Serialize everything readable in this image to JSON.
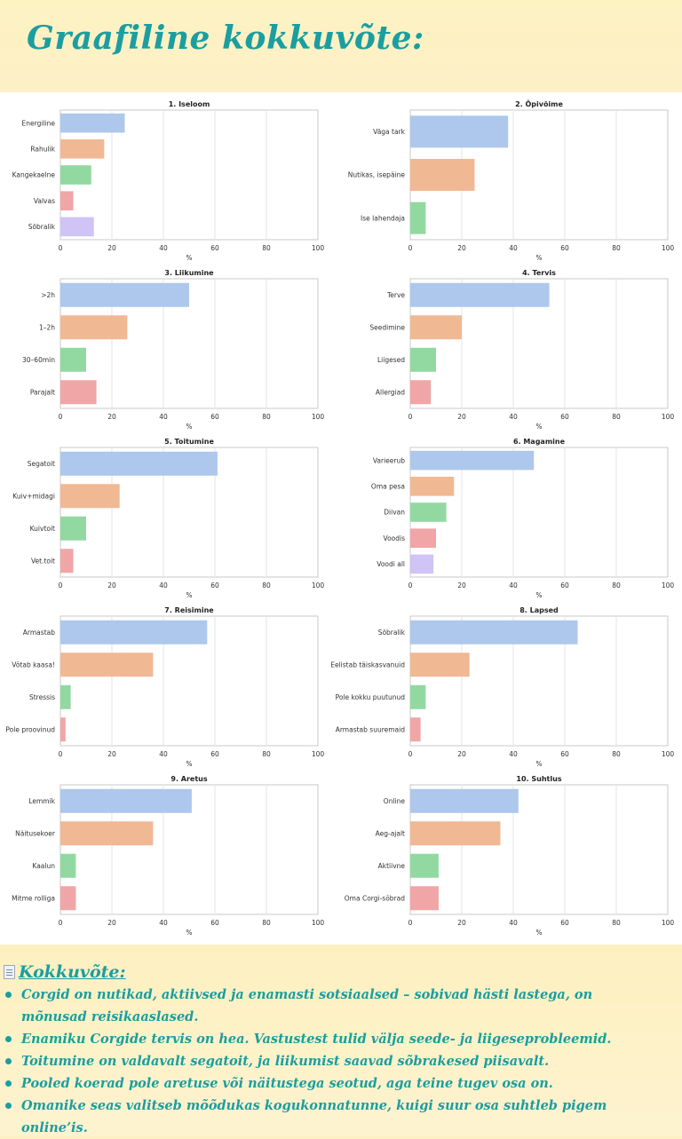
{
  "header": {
    "title": "Graafiline kokkuvõte:"
  },
  "chart_data": [
    {
      "type": "bar",
      "orientation": "horizontal",
      "title": "1. Iseloom",
      "xlabel": "%",
      "xlim": [
        0,
        100
      ],
      "xticks": [
        "0",
        "20",
        "40",
        "60",
        "80",
        "100"
      ],
      "grid": "vertical",
      "categories": [
        "Energiline",
        "Rahulik",
        "Kangekaelne",
        "Valvas",
        "Sõbralik"
      ],
      "values": [
        25,
        17,
        12,
        5,
        13
      ]
    },
    {
      "type": "bar",
      "orientation": "horizontal",
      "title": "2. Õpivõime",
      "xlabel": "%",
      "xlim": [
        0,
        100
      ],
      "xticks": [
        "0",
        "20",
        "40",
        "60",
        "80",
        "100"
      ],
      "grid": "vertical",
      "categories": [
        "Väga tark",
        "Nutikas, isepäine",
        "Ise lahendaja"
      ],
      "values": [
        38,
        25,
        6
      ]
    },
    {
      "type": "bar",
      "orientation": "horizontal",
      "title": "3. Liikumine",
      "xlabel": "%",
      "xlim": [
        0,
        100
      ],
      "xticks": [
        "0",
        "20",
        "40",
        "60",
        "80",
        "100"
      ],
      "grid": "vertical",
      "categories": [
        ">2h",
        "1–2h",
        "30–60min",
        "Parajalt"
      ],
      "values": [
        50,
        26,
        10,
        14
      ]
    },
    {
      "type": "bar",
      "orientation": "horizontal",
      "title": "4. Tervis",
      "xlabel": "%",
      "xlim": [
        0,
        100
      ],
      "xticks": [
        "0",
        "20",
        "40",
        "60",
        "80",
        "100"
      ],
      "grid": "vertical",
      "categories": [
        "Terve",
        "Seedimine",
        "Liigesed",
        "Allergiad"
      ],
      "values": [
        54,
        20,
        10,
        8
      ]
    },
    {
      "type": "bar",
      "orientation": "horizontal",
      "title": "5. Toitumine",
      "xlabel": "%",
      "xlim": [
        0,
        100
      ],
      "xticks": [
        "0",
        "20",
        "40",
        "60",
        "80",
        "100"
      ],
      "grid": "vertical",
      "categories": [
        "Segatoit",
        "Kuiv+midagi",
        "Kuivtoit",
        "Vet.toit"
      ],
      "values": [
        61,
        23,
        10,
        5
      ]
    },
    {
      "type": "bar",
      "orientation": "horizontal",
      "title": "6. Magamine",
      "xlabel": "%",
      "xlim": [
        0,
        100
      ],
      "xticks": [
        "0",
        "20",
        "40",
        "60",
        "80",
        "100"
      ],
      "grid": "vertical",
      "categories": [
        "Varieerub",
        "Oma pesa",
        "Diivan",
        "Voodis",
        "Voodi all"
      ],
      "values": [
        48,
        17,
        14,
        10,
        9
      ]
    },
    {
      "type": "bar",
      "orientation": "horizontal",
      "title": "7. Reisimine",
      "xlabel": "%",
      "xlim": [
        0,
        100
      ],
      "xticks": [
        "0",
        "20",
        "40",
        "60",
        "80",
        "100"
      ],
      "grid": "vertical",
      "categories": [
        "Armastab",
        "Võtab kaasa!",
        "Stressis",
        "Pole proovinud"
      ],
      "values": [
        57,
        36,
        4,
        2
      ]
    },
    {
      "type": "bar",
      "orientation": "horizontal",
      "title": "8. Lapsed",
      "xlabel": "%",
      "xlim": [
        0,
        100
      ],
      "xticks": [
        "0",
        "20",
        "40",
        "60",
        "80",
        "100"
      ],
      "grid": "vertical",
      "categories": [
        "Sõbralik",
        "Eelistab täiskasvanuid",
        "Pole kokku puutunud",
        "Armastab suuremaid"
      ],
      "values": [
        65,
        23,
        6,
        4
      ]
    },
    {
      "type": "bar",
      "orientation": "horizontal",
      "title": "9. Aretus",
      "xlabel": "%",
      "xlim": [
        0,
        100
      ],
      "xticks": [
        "0",
        "20",
        "40",
        "60",
        "80",
        "100"
      ],
      "grid": "vertical",
      "categories": [
        "Lemmik",
        "Näitusekoer",
        "Kaalun",
        "Mitme rolliga"
      ],
      "values": [
        51,
        36,
        6,
        6
      ]
    },
    {
      "type": "bar",
      "orientation": "horizontal",
      "title": "10. Suhtlus",
      "xlabel": "%",
      "xlim": [
        0,
        100
      ],
      "xticks": [
        "0",
        "20",
        "40",
        "60",
        "80",
        "100"
      ],
      "grid": "vertical",
      "categories": [
        "Online",
        "Aeg-ajalt",
        "Aktiivne",
        "Oma Corgi-sõbrad"
      ],
      "values": [
        42,
        35,
        11,
        11
      ]
    }
  ],
  "colors": {
    "bars": [
      "#aec7ec",
      "#f1b894",
      "#92d9a1",
      "#f0a5a7",
      "#d0c3f5"
    ],
    "accent": "#1a9ea0",
    "axis": "#c8c8c8",
    "grid": "#e6e6e6"
  },
  "summary": {
    "icon": "document-icon",
    "title": "Kokkuvõte:",
    "bullets": [
      "Corgid on nutikad, aktiivsed ja enamasti sotsiaalsed – sobivad hästi lastega, on mõnusad reisikaaslased.",
      "Enamiku Corgide tervis on hea. Vastustest tulid välja seede- ja liigeseprobleemid.",
      "Toitumine on valdavalt segatoit, ja liikumist saavad sõbrakesed piisavalt.",
      "Pooled koerad pole aretuse või näitustega seotud, aga teine tugev osa on.",
      "Omanike seas valitseb mõõdukas kogukonnatunne, kuigi suur osa suhtleb pigem online’is."
    ]
  }
}
